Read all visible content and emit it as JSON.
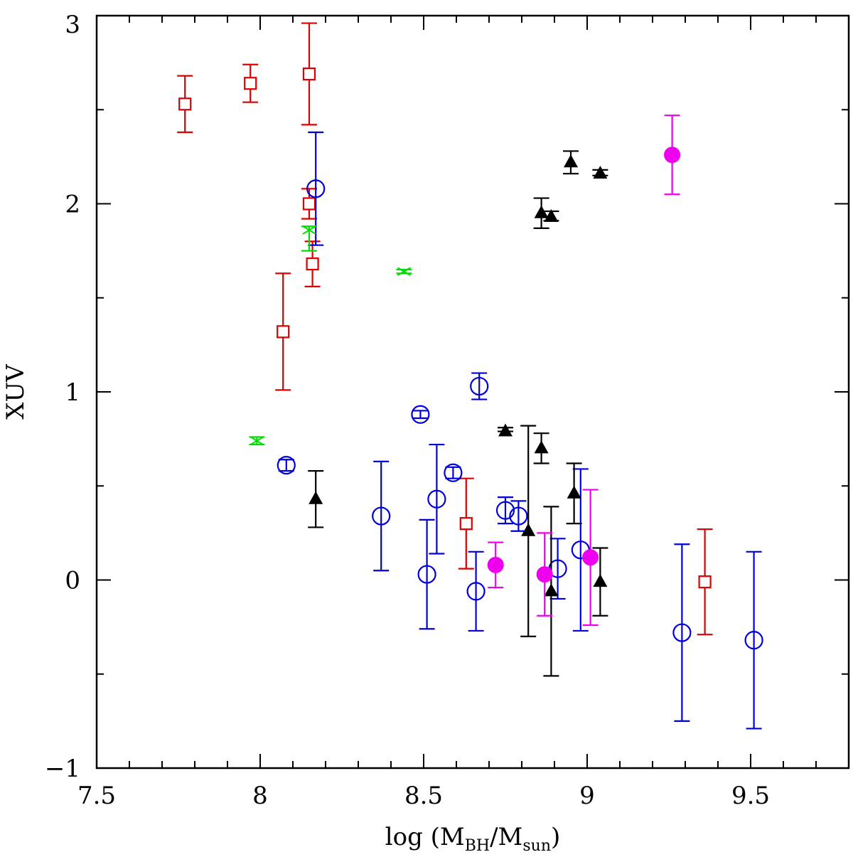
{
  "chart_data": {
    "type": "scatter",
    "xlabel": {
      "prefix": "log (M",
      "sub1": "BH",
      "mid": "/M",
      "sub2": "sun",
      "suffix": ")"
    },
    "ylabel": "XUV",
    "xlim": [
      7.5,
      9.8
    ],
    "ylim": [
      -1,
      3
    ],
    "x_ticks": [
      {
        "value": 7.5,
        "label": "7.5"
      },
      {
        "value": 8,
        "label": "8"
      },
      {
        "value": 8.5,
        "label": "8.5"
      },
      {
        "value": 9,
        "label": "9"
      },
      {
        "value": 9.5,
        "label": "9.5"
      }
    ],
    "x_minor_ticks": [
      7.6,
      7.7,
      7.8,
      7.9,
      8.1,
      8.2,
      8.3,
      8.4,
      8.6,
      8.7,
      8.8,
      8.9,
      9.1,
      9.2,
      9.3,
      9.4,
      9.6,
      9.7
    ],
    "y_ticks": [
      {
        "value": -1,
        "label": "−1"
      },
      {
        "value": 0,
        "label": "0"
      },
      {
        "value": 1,
        "label": "1"
      },
      {
        "value": 2,
        "label": "2"
      },
      {
        "value": 3,
        "label": "3"
      }
    ],
    "y_minor_ticks": [
      -0.5,
      0.5,
      1.5,
      2.5
    ],
    "grid": false,
    "legend": "none",
    "series": [
      {
        "marker": "open-square",
        "color": "#dd0000",
        "points": [
          {
            "x": 7.77,
            "y": 2.53,
            "lo": 2.38,
            "hi": 2.68
          },
          {
            "x": 7.97,
            "y": 2.64,
            "lo": 2.54,
            "hi": 2.74
          },
          {
            "x": 8.15,
            "y": 2.69,
            "lo": 2.42,
            "hi": 2.96
          },
          {
            "x": 8.15,
            "y": 2.0,
            "lo": 1.92,
            "hi": 2.08
          },
          {
            "x": 8.16,
            "y": 1.68,
            "lo": 1.56,
            "hi": 1.8
          },
          {
            "x": 8.07,
            "y": 1.32,
            "lo": 1.01,
            "hi": 1.63
          },
          {
            "x": 8.63,
            "y": 0.3,
            "lo": 0.06,
            "hi": 0.54
          },
          {
            "x": 9.36,
            "y": -0.01,
            "lo": -0.29,
            "hi": 0.27
          }
        ]
      },
      {
        "marker": "open-circle",
        "color": "#0000dd",
        "points": [
          {
            "x": 8.17,
            "y": 2.08,
            "lo": 1.78,
            "hi": 2.38
          },
          {
            "x": 8.08,
            "y": 0.61,
            "lo": 0.58,
            "hi": 0.64
          },
          {
            "x": 8.37,
            "y": 0.34,
            "lo": 0.05,
            "hi": 0.63
          },
          {
            "x": 8.49,
            "y": 0.88,
            "lo": 0.86,
            "hi": 0.9
          },
          {
            "x": 8.51,
            "y": 0.03,
            "lo": -0.26,
            "hi": 0.32
          },
          {
            "x": 8.54,
            "y": 0.43,
            "lo": 0.14,
            "hi": 0.72
          },
          {
            "x": 8.59,
            "y": 0.57,
            "lo": 0.54,
            "hi": 0.6
          },
          {
            "x": 8.66,
            "y": -0.06,
            "lo": -0.27,
            "hi": 0.15
          },
          {
            "x": 8.67,
            "y": 1.03,
            "lo": 0.96,
            "hi": 1.1
          },
          {
            "x": 8.75,
            "y": 0.37,
            "lo": 0.3,
            "hi": 0.44
          },
          {
            "x": 8.79,
            "y": 0.34,
            "lo": 0.26,
            "hi": 0.42
          },
          {
            "x": 8.91,
            "y": 0.06,
            "lo": -0.1,
            "hi": 0.22
          },
          {
            "x": 8.98,
            "y": 0.16,
            "lo": -0.27,
            "hi": 0.59
          },
          {
            "x": 9.29,
            "y": -0.28,
            "lo": -0.75,
            "hi": 0.19
          },
          {
            "x": 9.51,
            "y": -0.32,
            "lo": -0.79,
            "hi": 0.15
          }
        ]
      },
      {
        "marker": "filled-triangle",
        "color": "#000000",
        "points": [
          {
            "x": 8.17,
            "y": 0.43,
            "lo": 0.28,
            "hi": 0.58
          },
          {
            "x": 8.75,
            "y": 0.79,
            "lo": 0.79,
            "hi": 0.81
          },
          {
            "x": 8.82,
            "y": 0.26,
            "lo": -0.3,
            "hi": 0.82
          },
          {
            "x": 8.86,
            "y": 0.7,
            "lo": 0.62,
            "hi": 0.78
          },
          {
            "x": 8.86,
            "y": 1.95,
            "lo": 1.87,
            "hi": 2.03
          },
          {
            "x": 8.89,
            "y": 1.93,
            "lo": 1.91,
            "hi": 1.96
          },
          {
            "x": 8.89,
            "y": -0.06,
            "lo": -0.51,
            "hi": 0.39
          },
          {
            "x": 8.95,
            "y": 2.22,
            "lo": 2.16,
            "hi": 2.28
          },
          {
            "x": 8.96,
            "y": 0.46,
            "lo": 0.3,
            "hi": 0.62
          },
          {
            "x": 9.04,
            "y": 2.16,
            "lo": 2.15,
            "hi": 2.18
          },
          {
            "x": 9.04,
            "y": -0.01,
            "lo": -0.19,
            "hi": 0.17
          }
        ]
      },
      {
        "marker": "filled-circle",
        "color": "#ee00ee",
        "points": [
          {
            "x": 8.72,
            "y": 0.08,
            "lo": -0.04,
            "hi": 0.2
          },
          {
            "x": 8.87,
            "y": 0.03,
            "lo": -0.19,
            "hi": 0.25
          },
          {
            "x": 9.01,
            "y": 0.12,
            "lo": -0.24,
            "hi": 0.48
          },
          {
            "x": 9.26,
            "y": 2.26,
            "lo": 2.05,
            "hi": 2.47
          }
        ]
      },
      {
        "marker": "asterisk",
        "color": "#00dd00",
        "points": [
          {
            "x": 7.99,
            "y": 0.74,
            "lo": 0.72,
            "hi": 0.76
          },
          {
            "x": 8.15,
            "y": 1.86,
            "lo": 1.75,
            "hi": 1.88
          },
          {
            "x": 8.44,
            "y": 1.64,
            "lo": 1.63,
            "hi": 1.65
          }
        ]
      }
    ]
  }
}
